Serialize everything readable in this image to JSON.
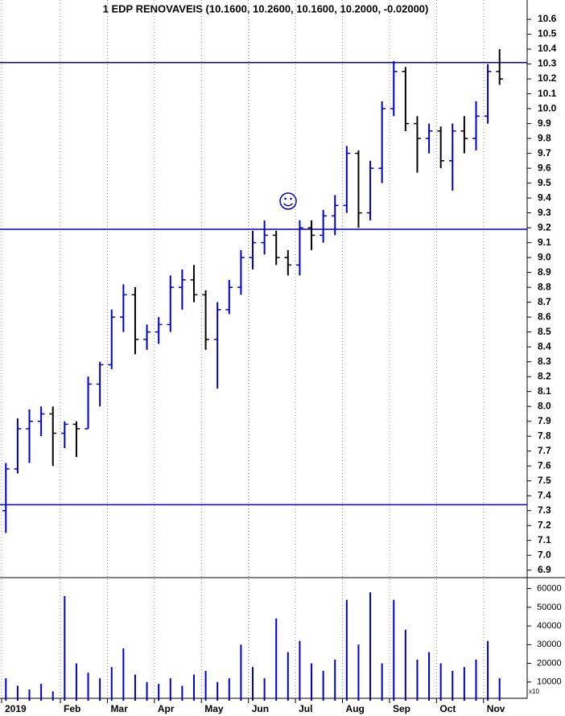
{
  "chart_data": {
    "type": "ohlc",
    "title": "1 EDP RENOVAVEIS (10.1600, 10.2600, 10.1600, 10.2000, -0.02000)",
    "categories": [
      "2019",
      null,
      null,
      null,
      null,
      "Feb",
      null,
      null,
      null,
      "Mar",
      null,
      null,
      null,
      "Apr",
      null,
      null,
      null,
      "May",
      null,
      null,
      null,
      "Jun",
      null,
      null,
      null,
      "Jul",
      null,
      null,
      null,
      "Aug",
      null,
      null,
      null,
      "Sep",
      null,
      null,
      null,
      "Oct",
      null,
      null,
      null,
      "Nov",
      null
    ],
    "open": [
      7.3,
      7.58,
      7.85,
      7.9,
      7.95,
      7.82,
      7.88,
      7.85,
      8.15,
      8.28,
      8.6,
      8.75,
      8.45,
      8.5,
      8.55,
      8.8,
      8.85,
      8.75,
      8.45,
      8.65,
      8.8,
      9.0,
      9.1,
      9.15,
      9.0,
      8.95,
      9.2,
      9.15,
      9.28,
      9.35,
      9.7,
      9.3,
      9.6,
      10.0,
      10.25,
      9.9,
      9.8,
      9.85,
      9.65,
      9.85,
      9.8,
      9.95,
      10.25
    ],
    "high": [
      7.62,
      7.92,
      7.98,
      8.0,
      8.0,
      7.9,
      7.9,
      8.2,
      8.3,
      8.65,
      8.82,
      8.8,
      8.55,
      8.6,
      8.88,
      8.92,
      8.95,
      8.78,
      8.7,
      8.85,
      9.05,
      9.18,
      9.25,
      9.18,
      9.05,
      9.25,
      9.25,
      9.32,
      9.42,
      9.75,
      9.72,
      9.65,
      10.05,
      10.32,
      10.28,
      9.95,
      9.9,
      9.88,
      9.9,
      9.95,
      10.05,
      10.3,
      10.4
    ],
    "low": [
      7.15,
      7.55,
      7.62,
      7.8,
      7.6,
      7.72,
      7.66,
      7.85,
      8.0,
      8.25,
      8.5,
      8.35,
      8.38,
      8.42,
      8.5,
      8.65,
      8.7,
      8.38,
      8.12,
      8.62,
      8.75,
      8.92,
      9.02,
      8.95,
      8.88,
      8.88,
      9.05,
      9.1,
      9.15,
      9.3,
      9.2,
      9.25,
      9.5,
      9.95,
      9.85,
      9.57,
      9.7,
      9.6,
      9.45,
      9.7,
      9.72,
      9.9,
      10.16
    ],
    "close": [
      7.58,
      7.85,
      7.9,
      7.95,
      7.82,
      7.88,
      7.85,
      8.15,
      8.28,
      8.6,
      8.75,
      8.45,
      8.5,
      8.55,
      8.8,
      8.85,
      8.75,
      8.45,
      8.65,
      8.8,
      9.0,
      9.1,
      9.15,
      9.0,
      8.95,
      9.2,
      9.15,
      9.28,
      9.35,
      9.7,
      9.3,
      9.6,
      10.0,
      10.25,
      9.9,
      9.8,
      9.85,
      9.65,
      9.85,
      9.8,
      9.95,
      10.25,
      10.2
    ],
    "volume": [
      12000,
      8000,
      6000,
      9000,
      5000,
      56000,
      20000,
      15000,
      12000,
      18000,
      28000,
      14000,
      10000,
      9000,
      12000,
      8000,
      14000,
      16000,
      10000,
      12000,
      30000,
      18000,
      12000,
      44000,
      26000,
      32000,
      20000,
      16000,
      22000,
      54000,
      30000,
      58000,
      20000,
      54000,
      38000,
      22000,
      26000,
      20000,
      16000,
      18000,
      22000,
      32000,
      12000
    ],
    "up_color": "#0000cc",
    "down_color": "#000000",
    "volume_color": "#0000cc",
    "level_color": "#0000cc",
    "levels": [
      10.31,
      9.19,
      7.34
    ],
    "ylim": [
      6.85,
      10.73
    ],
    "yticks": [
      6.9,
      {
        "value": 7,
        "label": "7.0"
      },
      7.1,
      7.2,
      7.3,
      7.4,
      7.5,
      7.6,
      7.7,
      7.8,
      7.9,
      {
        "value": 8,
        "label": "8.0"
      },
      8.1,
      8.2,
      8.3,
      8.4,
      8.5,
      8.6,
      8.7,
      8.8,
      8.9,
      {
        "value": 9,
        "label": "9.0"
      },
      9.1,
      9.2,
      9.3,
      9.4,
      9.5,
      9.6,
      9.7,
      9.8,
      9.9,
      {
        "value": 10,
        "label": "10.0"
      },
      10.1,
      10.2,
      10.3,
      10.4,
      10.5,
      10.6
    ],
    "y2lim": [
      0,
      65000
    ],
    "y2ticks": [
      10000,
      20000,
      30000,
      40000,
      50000,
      60000
    ],
    "volume_multiplier_label": "x10",
    "grid": true
  }
}
